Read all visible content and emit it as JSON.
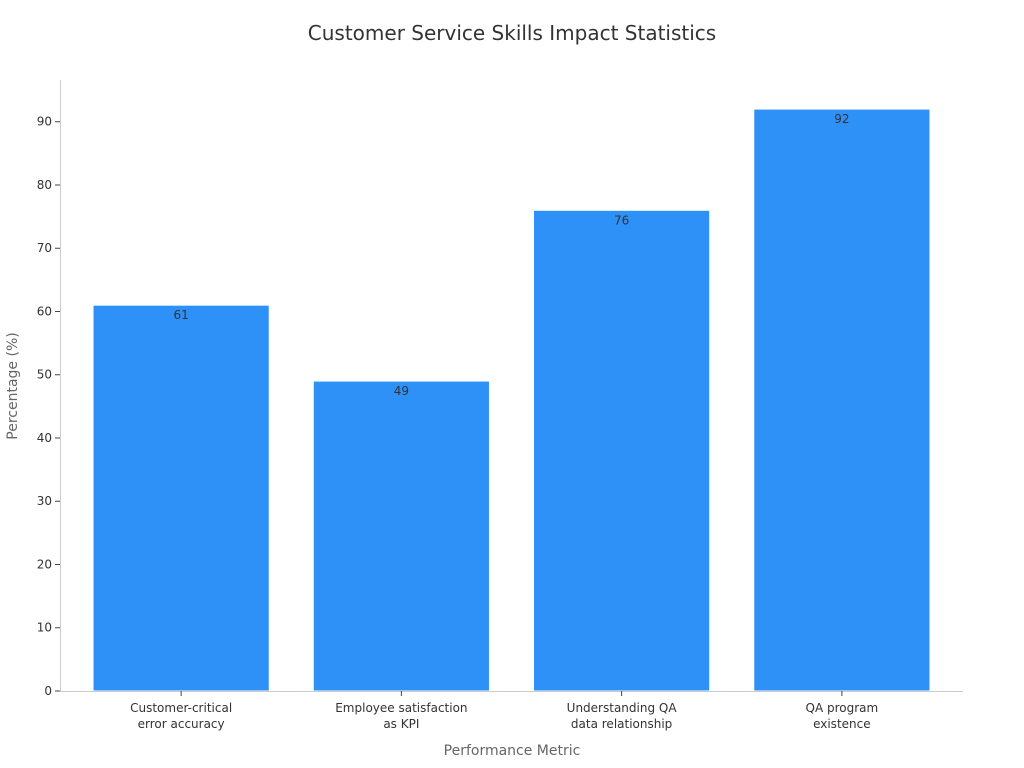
{
  "chart_data": {
    "type": "bar",
    "title": "Customer Service Skills Impact Statistics",
    "xlabel": "Performance Metric",
    "ylabel": "Percentage (%)",
    "categories": [
      [
        "Customer-critical",
        "error accuracy"
      ],
      [
        "Employee satisfaction",
        "as KPI"
      ],
      [
        "Understanding QA",
        "data relationship"
      ],
      [
        "QA program",
        "existence"
      ]
    ],
    "values": [
      61,
      49,
      76,
      92
    ],
    "ylim": [
      0,
      96.6
    ],
    "yticks": [
      0,
      10,
      20,
      30,
      40,
      50,
      60,
      70,
      80,
      90
    ],
    "bar_color": "#2e91f8",
    "grid": false,
    "legend": "none"
  }
}
